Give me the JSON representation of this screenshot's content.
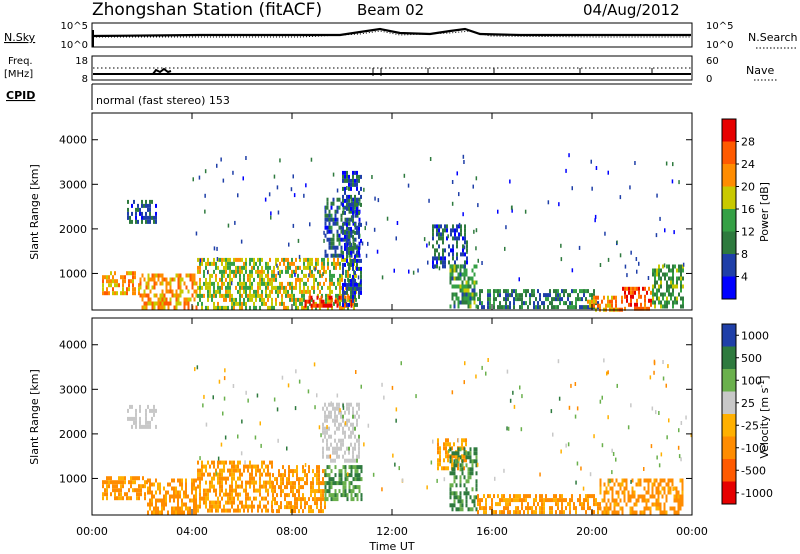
{
  "header": {
    "station": "Zhongshan Station (fitACF)",
    "beam": "Beam 02",
    "date": "04/Aug/2012"
  },
  "status_panels": {
    "nsky_label": "N.Sky",
    "nsky_ticks": [
      "10^5",
      "10^0"
    ],
    "nsearch_label": "N.Search",
    "nsearch_ticks": [
      "10^5",
      "10^0"
    ],
    "freq_label_1": "Freq.",
    "freq_label_2": "[MHz]",
    "freq_ticks": [
      "18",
      "8"
    ],
    "nave_label": "Nave",
    "nave_ticks": [
      "60",
      "0"
    ],
    "cpid_label": "CPID",
    "cpid_text": "normal (fast stereo) 153"
  },
  "colors": {
    "power": [
      "#0000ff",
      "#1f3fa8",
      "#2e7a3e",
      "#35a045",
      "#c9c900",
      "#ff8c00",
      "#ff5a00",
      "#e60000"
    ],
    "velocity": [
      "#1f3fa8",
      "#2e7a3e",
      "#6ab04c",
      "#c8c8c8",
      "#ffb000",
      "#ff8c00",
      "#ff5a00",
      "#e60000"
    ]
  },
  "chart_data": [
    {
      "type": "heatmap",
      "name": "power",
      "ylabel": "Slant Range [km]",
      "xlabel": "Time UT",
      "x_ticks": [
        "00:00",
        "04:00",
        "08:00",
        "12:00",
        "16:00",
        "20:00",
        "00:00"
      ],
      "xlim_hours": [
        0,
        24
      ],
      "y_ticks": [
        1000,
        2000,
        3000,
        4000
      ],
      "ylim": [
        180,
        4600
      ],
      "colorbar_label": "Power [dB]",
      "colorbar_ticks": [
        "4",
        "8",
        "12",
        "16",
        "20",
        "24",
        "28"
      ],
      "colorbar_range": [
        0,
        32
      ],
      "regions": [
        {
          "t0": 0.4,
          "t1": 1.9,
          "r0": 550,
          "r1": 1050,
          "v": 21
        },
        {
          "t0": 1.9,
          "t1": 4.2,
          "r0": 280,
          "r1": 1000,
          "v": 22
        },
        {
          "t0": 4.2,
          "t1": 7.0,
          "r0": 250,
          "r1": 1350,
          "v": 17
        },
        {
          "t0": 7.0,
          "t1": 10.6,
          "r0": 250,
          "r1": 1350,
          "v": 18
        },
        {
          "t0": 8.5,
          "t1": 10.5,
          "r0": 250,
          "r1": 500,
          "v": 29
        },
        {
          "t0": 1.4,
          "t1": 2.6,
          "r0": 2200,
          "r1": 2650,
          "v": 7
        },
        {
          "t0": 9.3,
          "t1": 10.7,
          "r0": 1400,
          "r1": 2700,
          "v": 8
        },
        {
          "t0": 10.0,
          "t1": 10.8,
          "r0": 300,
          "r1": 3300,
          "v": 6
        },
        {
          "t0": 13.6,
          "t1": 15.0,
          "r0": 1200,
          "r1": 2100,
          "v": 7
        },
        {
          "t0": 14.3,
          "t1": 15.4,
          "r0": 280,
          "r1": 1200,
          "v": 12
        },
        {
          "t0": 15.4,
          "t1": 20.3,
          "r0": 230,
          "r1": 650,
          "v": 10
        },
        {
          "t0": 19.8,
          "t1": 21.2,
          "r0": 230,
          "r1": 500,
          "v": 23
        },
        {
          "t0": 21.2,
          "t1": 22.4,
          "r0": 230,
          "r1": 700,
          "v": 27
        },
        {
          "t0": 22.4,
          "t1": 23.6,
          "r0": 230,
          "r1": 1200,
          "v": 13
        }
      ]
    },
    {
      "type": "heatmap",
      "name": "velocity",
      "ylabel": "Slant Range [km]",
      "xlabel": "Time UT",
      "x_ticks": [
        "00:00",
        "04:00",
        "08:00",
        "12:00",
        "16:00",
        "20:00",
        "00:00"
      ],
      "xlim_hours": [
        0,
        24
      ],
      "y_ticks": [
        1000,
        2000,
        3000,
        4000
      ],
      "ylim": [
        180,
        4600
      ],
      "colorbar_label": "Velocity [m s^-1]",
      "colorbar_ticks": [
        "1000",
        "500",
        "100",
        "25",
        "-25",
        "-100",
        "-500",
        "-1000"
      ],
      "regions": [
        {
          "t0": 0.4,
          "t1": 2.2,
          "r0": 550,
          "r1": 1050,
          "v": -120
        },
        {
          "t0": 2.2,
          "t1": 4.2,
          "r0": 280,
          "r1": 1000,
          "v": -150
        },
        {
          "t0": 4.2,
          "t1": 7.2,
          "r0": 250,
          "r1": 1400,
          "v": -110
        },
        {
          "t0": 7.2,
          "t1": 9.3,
          "r0": 250,
          "r1": 1300,
          "v": -140
        },
        {
          "t0": 9.3,
          "t1": 10.8,
          "r0": 550,
          "r1": 1300,
          "v": 90
        },
        {
          "t0": 1.4,
          "t1": 2.6,
          "r0": 2200,
          "r1": 2650,
          "v": 0
        },
        {
          "t0": 9.2,
          "t1": 10.7,
          "r0": 1400,
          "r1": 2700,
          "v": 5
        },
        {
          "t0": 13.8,
          "t1": 15.0,
          "r0": 1200,
          "r1": 1900,
          "v": -80
        },
        {
          "t0": 14.3,
          "t1": 15.4,
          "r0": 300,
          "r1": 1700,
          "v": 120
        },
        {
          "t0": 15.4,
          "t1": 20.3,
          "r0": 230,
          "r1": 650,
          "v": -130
        },
        {
          "t0": 20.3,
          "t1": 23.6,
          "r0": 230,
          "r1": 1000,
          "v": -150
        }
      ]
    }
  ]
}
